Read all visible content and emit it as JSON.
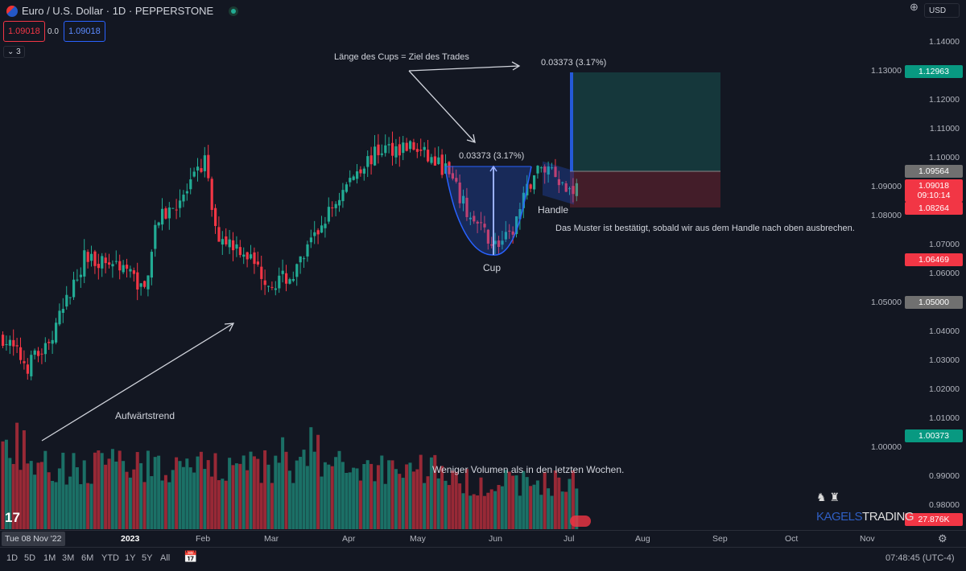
{
  "header": {
    "title": "Euro / U.S. Dollar · 1D · PEPPERSTONE",
    "sell_price": "1.09018",
    "spread": "0.0",
    "buy_price": "1.09018",
    "indicators_toggle": "3",
    "currency": "USD"
  },
  "colors": {
    "up": "#22ab94",
    "down": "#f23645",
    "accent": "#2962ff",
    "bg": "#131722"
  },
  "price_axis": {
    "ticks": [
      "1.14000",
      "1.13000",
      "1.12000",
      "1.11000",
      "1.10000",
      "1.09000",
      "1.08000",
      "1.07000",
      "1.06000",
      "1.05000",
      "1.04000",
      "1.03000",
      "1.02000",
      "1.01000",
      "1.00000",
      "0.99000",
      "0.98000"
    ],
    "labels": {
      "target": "1.12963",
      "entry": "1.09564",
      "last": "1.09018",
      "countdown": "09:10:14",
      "stop": "1.08264",
      "low": "1.06469",
      "level": "1.05000",
      "level2": "1.00373",
      "volume": "27.876K"
    }
  },
  "time_axis": {
    "ticks": [
      "2023",
      "Feb",
      "Mar",
      "Apr",
      "May",
      "Jun",
      "Jul",
      "Aug",
      "Sep",
      "Oct",
      "Nov"
    ],
    "cursor_date": "Tue 08 Nov '22"
  },
  "annotations": {
    "cup_length": "Länge des Cups = Ziel des Trades",
    "measure": "0.03373 (3.17%)",
    "cup": "Cup",
    "handle": "Handle",
    "confirm": "Das Muster ist bestätigt, sobald wir aus dem Handle nach oben ausbrechen.",
    "trend": "Aufwärtstrend",
    "volume": "Weniger Volumen als in den letzten Wochen."
  },
  "watermark": {
    "brand_a": "KAGELS",
    "brand_b": "TRADING"
  },
  "timeframes": [
    "1D",
    "5D",
    "1M",
    "3M",
    "6M",
    "YTD",
    "1Y",
    "5Y",
    "All"
  ],
  "clock": "07:48:45 (UTC-4)",
  "price_path": [
    [
      0,
      1.038
    ],
    [
      7,
      1.028
    ],
    [
      14,
      1.038
    ],
    [
      23,
      1.0656
    ],
    [
      34,
      1.063
    ],
    [
      40,
      1.054
    ],
    [
      43,
      1.077
    ],
    [
      52,
      1.088
    ],
    [
      57,
      1.099
    ],
    [
      60,
      1.074
    ],
    [
      68,
      1.068
    ],
    [
      75,
      1.057
    ],
    [
      82,
      1.059
    ],
    [
      91,
      1.079
    ],
    [
      100,
      1.096
    ],
    [
      107,
      1.103
    ],
    [
      115,
      1.104
    ],
    [
      125,
      1.096
    ],
    [
      132,
      1.079
    ],
    [
      139,
      1.07
    ],
    [
      143,
      1.072
    ],
    [
      150,
      1.095
    ],
    [
      155,
      1.097
    ],
    [
      159,
      1.089
    ],
    [
      162,
      1.09
    ]
  ]
}
